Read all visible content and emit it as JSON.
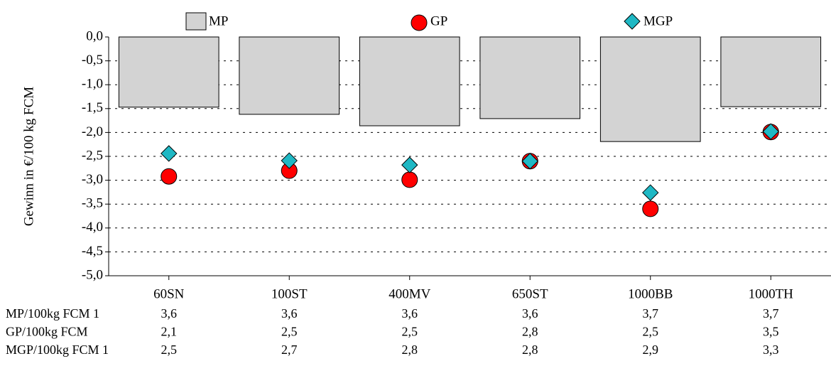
{
  "chart_data": {
    "type": "bar-scatter",
    "ylabel": "Gewinn in €/100 kg FCM",
    "categories": [
      "60SN",
      "100ST",
      "400MV",
      "650ST",
      "1000BB",
      "1000TH"
    ],
    "series": [
      {
        "name": "MP",
        "kind": "bar",
        "color": "#d3d3d3",
        "values": [
          -1.47,
          -1.62,
          -1.86,
          -1.71,
          -2.19,
          -1.46
        ]
      },
      {
        "name": "GP",
        "kind": "circle",
        "color": "#ff0000",
        "values": [
          -2.92,
          -2.8,
          -2.99,
          -2.6,
          -3.6,
          -1.99
        ]
      },
      {
        "name": "MGP",
        "kind": "diamond",
        "color": "#1fb8c4",
        "values": [
          -2.44,
          -2.59,
          -2.68,
          -2.6,
          -3.26,
          -1.98
        ]
      }
    ],
    "ylim": [
      -5,
      0
    ],
    "yticks": [
      {
        "value": 0,
        "label": "0,0"
      },
      {
        "value": -0.5,
        "label": "-0,5"
      },
      {
        "value": -1,
        "label": "-1,0"
      },
      {
        "value": -1.5,
        "label": "-1,5"
      },
      {
        "value": -2,
        "label": "-2,0"
      },
      {
        "value": -2.5,
        "label": "-2,5"
      },
      {
        "value": -3,
        "label": "-3,0"
      },
      {
        "value": -3.5,
        "label": "-3,5"
      },
      {
        "value": -4,
        "label": "-4,0"
      },
      {
        "value": -4.5,
        "label": "-4,5"
      },
      {
        "value": -5,
        "label": "-5,0"
      }
    ],
    "grid": true
  },
  "table": {
    "rows": [
      {
        "label": "MP/100kg FCM 1",
        "values": [
          "3,6",
          "3,6",
          "3,6",
          "3,6",
          "3,7",
          "3,7"
        ]
      },
      {
        "label": "GP/100kg FCM",
        "values": [
          "2,1",
          "2,5",
          "2,5",
          "2,8",
          "2,5",
          "3,5"
        ]
      },
      {
        "label": "MGP/100kg FCM 1",
        "values": [
          "2,5",
          "2,7",
          "2,8",
          "2,8",
          "2,9",
          "3,3"
        ]
      }
    ]
  }
}
